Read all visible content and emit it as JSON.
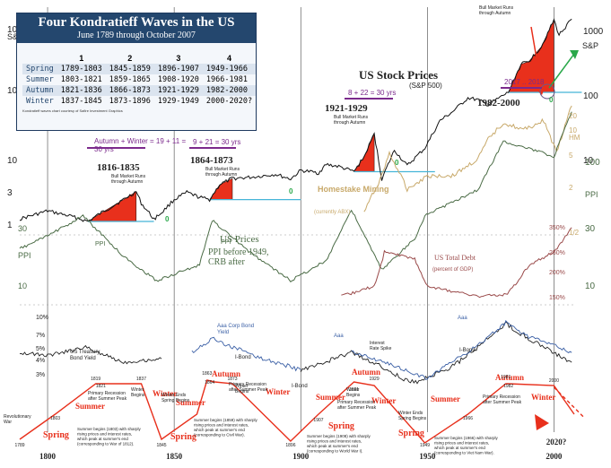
{
  "panel": {
    "title": "Four Kondratieff Waves in the US",
    "subtitle": "June 1789 through October 2007",
    "col_headers": [
      "1",
      "2",
      "3",
      "4"
    ],
    "seasons": [
      {
        "name": "Spring",
        "years": [
          "1789-1803",
          "1845-1859",
          "1896-1907",
          "1949-1966"
        ]
      },
      {
        "name": "Summer",
        "years": [
          "1803-1821",
          "1859-1865",
          "1908-1920",
          "1966-1981"
        ]
      },
      {
        "name": "Autumn",
        "years": [
          "1821-1836",
          "1866-1873",
          "1921-1929",
          "1982-2000"
        ]
      },
      {
        "name": "Winter",
        "years": [
          "1837-1845",
          "1873-1896",
          "1929-1949",
          "2000-2020?"
        ]
      }
    ],
    "note": "Kondratieff waves chart courtesy of Safire Investment Graphics"
  },
  "left_axis": {
    "sp_label": "S&P",
    "sp_ticks": [
      "1000",
      "100",
      "10",
      "3",
      "1"
    ],
    "ppi_label": "PPI",
    "ppi_ticks": [
      "30",
      "10"
    ]
  },
  "right_axis": {
    "sp_label": "S&P",
    "sp_ticks": [
      "1000",
      "100",
      "10"
    ],
    "hm_label": "HM",
    "hm_ticks": [
      "20",
      "10",
      "5",
      "2",
      "1/2"
    ],
    "ppi_label": "PPI",
    "ppi_ticks": [
      "100",
      "30",
      "10"
    ],
    "debt_ticks": [
      "350%",
      "250%",
      "200%",
      "150%"
    ]
  },
  "x_axis": {
    "ticks": [
      "1800",
      "1850",
      "1900",
      "1950",
      "2000",
      "2020?"
    ]
  },
  "labels": {
    "stock_title": "US Stock Prices",
    "stock_sub": "(S&P 500)",
    "p1816": "1816-1835",
    "p1864": "1864-1873",
    "p1921": "1921-1929",
    "p1982": "1982-2000",
    "bull": "Bull Market Runs through Autumn",
    "calc1": "Autumn + Winter = 19 + 11 = 30 yrs",
    "calc2": "9 + 21 = 30 yrs",
    "calc3": "8 + 22 = 30 yrs",
    "calc4": "2017 .. 2018",
    "zero": "0",
    "homestake": "Homestake Mining",
    "homestake_sub": "(currently ABX)",
    "us_prices": "US Prices",
    "us_prices_sub": "PPI before 1949, CRB after",
    "debt": "US Total Debt",
    "debt_sub": "(percent of GDP)",
    "rates_ticks": [
      "10%",
      "7%",
      "5%",
      "4%",
      "3%"
    ],
    "treasury": "US Treasury Bond Yield",
    "aaa_corp": "Aaa Corp Bond Yield",
    "ibond": "I-Bond",
    "aaa": "Aaa",
    "interest_spike": "Interest Rate Spike",
    "revolutionary_war": "Revolutionary War",
    "winter_ends": "Winter Ends Spring Begins",
    "winter_begins": "Winter Begins",
    "primary_recession": "Primary Recession after Summer Peak",
    "season_spring": "Spring",
    "season_summer": "Summer",
    "season_autumn": "Autumn",
    "season_winter": "Winter",
    "war1": "Summer begins (1803) with sharply rising prices and interest rates, which peak at summer's end (corresponding to War of 1812).",
    "war2": "Summer begins (1859) with sharply rising prices and interest rates, which peak at summer's end (corresponding to Civil War).",
    "war3": "Summer begins (1908) with sharply rising prices and interest rates, which peak at summer's end (corresponding to World War I).",
    "war4": "Summer begins (1966) with sharply rising prices and interest rates, which peak at summer's end (corresponding to Viet Nam War).",
    "y1789": "1789",
    "y1803": "1803",
    "y1819": "1819",
    "y1821": "1821",
    "y1837": "1837",
    "y1845": "1845",
    "y1863": "1863",
    "y1864": "1864",
    "y1873": "1873",
    "y1896": "1896",
    "y1907": "1907",
    "y1921": "1921",
    "y1929": "1929",
    "y1949": "1949",
    "y1966": "1966",
    "y1981": "1981",
    "y1982": "1982",
    "y2000": "2000"
  },
  "colors": {
    "sp": "#111111",
    "bull": "#e8301c",
    "gold": "#c8a96a",
    "ppi": "#4a6b45",
    "debt": "#9a4a4a",
    "aaa": "#3a5fa5",
    "kwave": "#e8301c",
    "purple": "#7b2a8c",
    "cyan": "#45b5d8",
    "green": "#2aa84a",
    "title_bg": "#24476e"
  },
  "chart_data": [
    {
      "type": "line",
      "title": "US Stock Prices",
      "subtitle": "(S&P 500)",
      "ylabel": "S&P",
      "yscale": "log",
      "ylim": [
        1,
        1000
      ],
      "series": [
        {
          "x": [
            1789,
            1800,
            1810,
            1816,
            1820,
            1830,
            1835,
            1837,
            1842,
            1845,
            1850,
            1855,
            1860,
            1864,
            1868,
            1873,
            1880,
            1890,
            1896,
            1900,
            1907,
            1910,
            1915,
            1921,
            1925,
            1929,
            1932,
            1937,
            1942,
            1949,
            1955,
            1960,
            1966,
            1970,
            1974,
            1982,
            1987,
            1990,
            1995,
            2000,
            2002,
            2007
          ],
          "y": [
            1.2,
            1.6,
            1.3,
            1.1,
            1.4,
            2.4,
            3.2,
            2.1,
            1.2,
            1.5,
            2.4,
            3.1,
            2.6,
            2.4,
            4.1,
            5.1,
            5.3,
            5.9,
            5.0,
            6.8,
            6.2,
            8.4,
            7.8,
            6.5,
            11,
            25,
            5,
            14,
            8,
            15,
            40,
            55,
            90,
            84,
            70,
            110,
            300,
            330,
            560,
            1450,
            850,
            1500
          ]
        }
      ]
    },
    {
      "type": "line",
      "title": "Homestake Mining",
      "subtitle": "(currently ABX)",
      "ylabel": "HM",
      "series": [
        {
          "x": [
            1925,
            1932,
            1935,
            1942,
            1950,
            1960,
            1970,
            1974,
            1980,
            1988,
            1996,
            2001,
            2007
          ],
          "y": [
            1,
            3,
            6,
            2,
            3,
            3,
            5,
            9,
            15,
            12,
            16,
            6,
            25
          ]
        }
      ]
    },
    {
      "type": "line",
      "title": "US Prices",
      "subtitle": "PPI before 1949, CRB after",
      "ylabel": "PPI",
      "yscale": "log",
      "series": [
        {
          "x": [
            1789,
            1800,
            1814,
            1830,
            1843,
            1860,
            1865,
            1880,
            1896,
            1910,
            1920,
            1932,
            1945,
            1949,
            1970,
            1980,
            1990,
            2000,
            2007
          ],
          "y": [
            18,
            22,
            30,
            16,
            11,
            14,
            28,
            17,
            11,
            15,
            33,
            13,
            21,
            30,
            45,
            95,
            85,
            75,
            150
          ]
        }
      ]
    },
    {
      "type": "line",
      "title": "US Total Debt",
      "subtitle": "(percent of GDP)",
      "series": [
        {
          "x": [
            1916,
            1929,
            1933,
            1945,
            1950,
            1970,
            1981,
            1990,
            2000,
            2007
          ],
          "y": [
            150,
            180,
            280,
            260,
            180,
            150,
            155,
            240,
            280,
            350
          ]
        }
      ]
    },
    {
      "type": "line",
      "title": "US Treasury Bond Yield",
      "series": [
        {
          "name": "US Treasury Bond Yield",
          "x": [
            1789,
            1800,
            1815,
            1830,
            1845
          ],
          "y": [
            6,
            5.5,
            7,
            4.5,
            5
          ]
        },
        {
          "name": "Aaa Corp Bond Yield",
          "x": [
            1857,
            1865,
            1873,
            1885,
            1900
          ],
          "y": [
            6,
            9,
            7,
            5,
            3.6
          ]
        },
        {
          "name": "I-Bond",
          "x": [
            1900,
            1920,
            1929,
            1940,
            1946,
            1960,
            1970,
            1981,
            1990,
            2000,
            2007
          ],
          "y": [
            3.5,
            6,
            4.5,
            2.8,
            2.5,
            4,
            7,
            14,
            9,
            6,
            4.5
          ]
        }
      ]
    }
  ]
}
